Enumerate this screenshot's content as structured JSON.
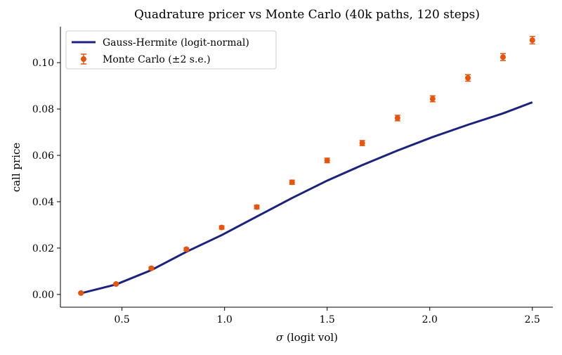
{
  "chart_data": {
    "type": "line",
    "title": "Quadrature pricer vs Monte Carlo (40k paths, 120 steps)",
    "xlabel_symbol": "σ",
    "xlabel_text": " (logit vol)",
    "ylabel": "call price",
    "xlim": [
      0.2,
      2.6
    ],
    "ylim": [
      -0.0055,
      0.1155
    ],
    "xticks": [
      0.5,
      1.0,
      1.5,
      2.0,
      2.5
    ],
    "xtick_labels": [
      "0.5",
      "1.0",
      "1.5",
      "2.0",
      "2.5"
    ],
    "yticks": [
      0.0,
      0.02,
      0.04,
      0.06,
      0.08,
      0.1
    ],
    "ytick_labels": [
      "0.00",
      "0.02",
      "0.04",
      "0.06",
      "0.08",
      "0.10"
    ],
    "legend_position": "top-left",
    "grid": false,
    "series": [
      {
        "name": "Gauss-Hermite (logit-normal)",
        "kind": "line",
        "color": "#1a237e",
        "x": [
          0.3,
          0.471,
          0.643,
          0.814,
          0.986,
          1.157,
          1.329,
          1.5,
          1.671,
          1.843,
          2.014,
          2.186,
          2.357,
          2.5
        ],
        "y": [
          0.0005,
          0.0043,
          0.0105,
          0.0184,
          0.0256,
          0.0336,
          0.0416,
          0.0491,
          0.0558,
          0.0621,
          0.0679,
          0.0732,
          0.0781,
          0.0829
        ]
      },
      {
        "name": "Monte Carlo (±2 s.e.)",
        "kind": "errorbar",
        "color": "#e6550d",
        "x": [
          0.3,
          0.471,
          0.643,
          0.814,
          0.986,
          1.157,
          1.329,
          1.5,
          1.671,
          1.843,
          2.014,
          2.186,
          2.357,
          2.5
        ],
        "y": [
          0.0006,
          0.0045,
          0.0113,
          0.0195,
          0.0289,
          0.0377,
          0.0484,
          0.0578,
          0.0653,
          0.0761,
          0.0844,
          0.0934,
          0.1024,
          0.1097
        ],
        "err": [
          0.0002,
          0.0004,
          0.0005,
          0.0006,
          0.0007,
          0.0008,
          0.0009,
          0.001,
          0.0011,
          0.0012,
          0.0013,
          0.0014,
          0.0015,
          0.0016
        ]
      }
    ]
  }
}
